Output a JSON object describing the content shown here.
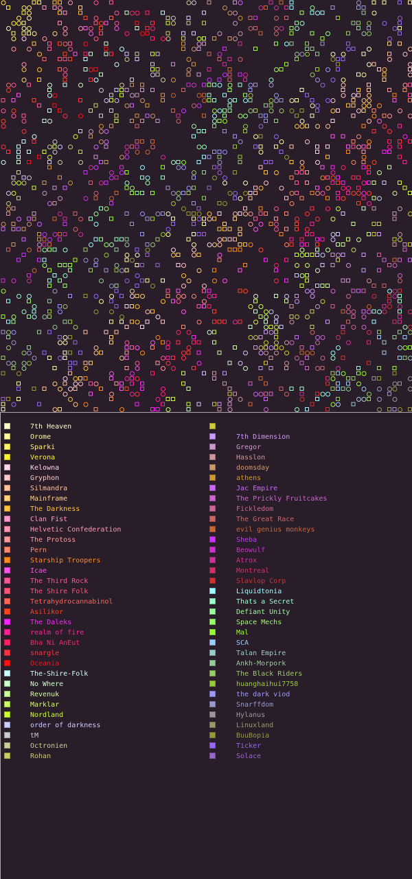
{
  "legend": {
    "left": [
      {
        "label": "7th Heaven",
        "color": "#fffccc"
      },
      {
        "label": "Orome",
        "color": "#fff99a"
      },
      {
        "label": "Sparki",
        "color": "#fff566"
      },
      {
        "label": "Verona",
        "color": "#fff233"
      },
      {
        "label": "Kelowna",
        "color": "#ffd6f0"
      },
      {
        "label": "Gryphon",
        "color": "#ffc7c7"
      },
      {
        "label": "Silmandra",
        "color": "#ffc39a"
      },
      {
        "label": "Mainframe",
        "color": "#ffd17a"
      },
      {
        "label": "The Darkness",
        "color": "#ffc23d"
      },
      {
        "label": "Clan Fist",
        "color": "#ff9acd"
      },
      {
        "label": "Helvetic Confederation",
        "color": "#ff99b3"
      },
      {
        "label": "The Protoss",
        "color": "#ff9999"
      },
      {
        "label": "Pern",
        "color": "#ff8a66"
      },
      {
        "label": "Starship Troopers",
        "color": "#ff8c1a"
      },
      {
        "label": "Icae",
        "color": "#ff55ee"
      },
      {
        "label": "The Third Rock",
        "color": "#ff5599"
      },
      {
        "label": "The Shire Folk",
        "color": "#ff5577"
      },
      {
        "label": "Tetrahydrocannabinol",
        "color": "#ff6655"
      },
      {
        "label": "Asilikor",
        "color": "#ff4422"
      },
      {
        "label": "The Daleks",
        "color": "#ff22ff"
      },
      {
        "label": "realm of fire",
        "color": "#ff2299"
      },
      {
        "label": "Bha Ni AnEut",
        "color": "#ff2266"
      },
      {
        "label": "snargle",
        "color": "#ff3344"
      },
      {
        "label": "Oceania",
        "color": "#ff1111"
      },
      {
        "label": "The-Shire-Folk",
        "color": "#ccffff"
      },
      {
        "label": "No Where",
        "color": "#ccffcc"
      },
      {
        "label": "Revenuk",
        "color": "#ccff99"
      },
      {
        "label": "Marklar",
        "color": "#ccff66"
      },
      {
        "label": "Nordland",
        "color": "#ccff33"
      },
      {
        "label": "order of darkness",
        "color": "#ccccff"
      },
      {
        "label": "tM",
        "color": "#cccccc"
      },
      {
        "label": "Octronien",
        "color": "#cccc99"
      },
      {
        "label": "Rohan",
        "color": "#cccc66"
      }
    ],
    "right": [
      {
        "label": "",
        "color": "#cccc33"
      },
      {
        "label": "7th Dimension",
        "color": "#cc99ff"
      },
      {
        "label": "Gregor",
        "color": "#cc99cc"
      },
      {
        "label": "Hasslon",
        "color": "#cc9999"
      },
      {
        "label": "doomsday",
        "color": "#cc9966"
      },
      {
        "label": "athens",
        "color": "#cc9933"
      },
      {
        "label": "Jac Empire",
        "color": "#cc66ff"
      },
      {
        "label": "The Prickly Fruitcakes",
        "color": "#cc66cc"
      },
      {
        "label": "Fickledom",
        "color": "#cc6699"
      },
      {
        "label": "The Great Race",
        "color": "#cc6666"
      },
      {
        "label": "evil genius monkeys",
        "color": "#cc6633"
      },
      {
        "label": "Sheba",
        "color": "#cc33ff"
      },
      {
        "label": "Beowulf",
        "color": "#cc33cc"
      },
      {
        "label": "Atrox",
        "color": "#cc3399"
      },
      {
        "label": "Montreal",
        "color": "#cc3366"
      },
      {
        "label": "Slavlop Corp",
        "color": "#cc3333"
      },
      {
        "label": "Liquidtonia",
        "color": "#99ffff"
      },
      {
        "label": "Thats a Secret",
        "color": "#99ffcc"
      },
      {
        "label": "Defiant Unity",
        "color": "#99ff99"
      },
      {
        "label": "Space Mechs",
        "color": "#99ff66"
      },
      {
        "label": "Mal",
        "color": "#99ff33"
      },
      {
        "label": "SCA",
        "color": "#99ccff"
      },
      {
        "label": "Talan Empire",
        "color": "#99cccc"
      },
      {
        "label": "Ankh-Morpork",
        "color": "#99cc99"
      },
      {
        "label": "The Black Riders",
        "color": "#99cc66"
      },
      {
        "label": "huanghaihui7758",
        "color": "#99cc33"
      },
      {
        "label": "the dark viod",
        "color": "#9999ff"
      },
      {
        "label": "Snarffdom",
        "color": "#9999cc"
      },
      {
        "label": "Hylanus",
        "color": "#999999"
      },
      {
        "label": "Linuxland",
        "color": "#999966"
      },
      {
        "label": "BuuBopia",
        "color": "#999933"
      },
      {
        "label": "Ticker",
        "color": "#9966ff"
      },
      {
        "label": "Solace",
        "color": "#9966cc"
      }
    ]
  }
}
